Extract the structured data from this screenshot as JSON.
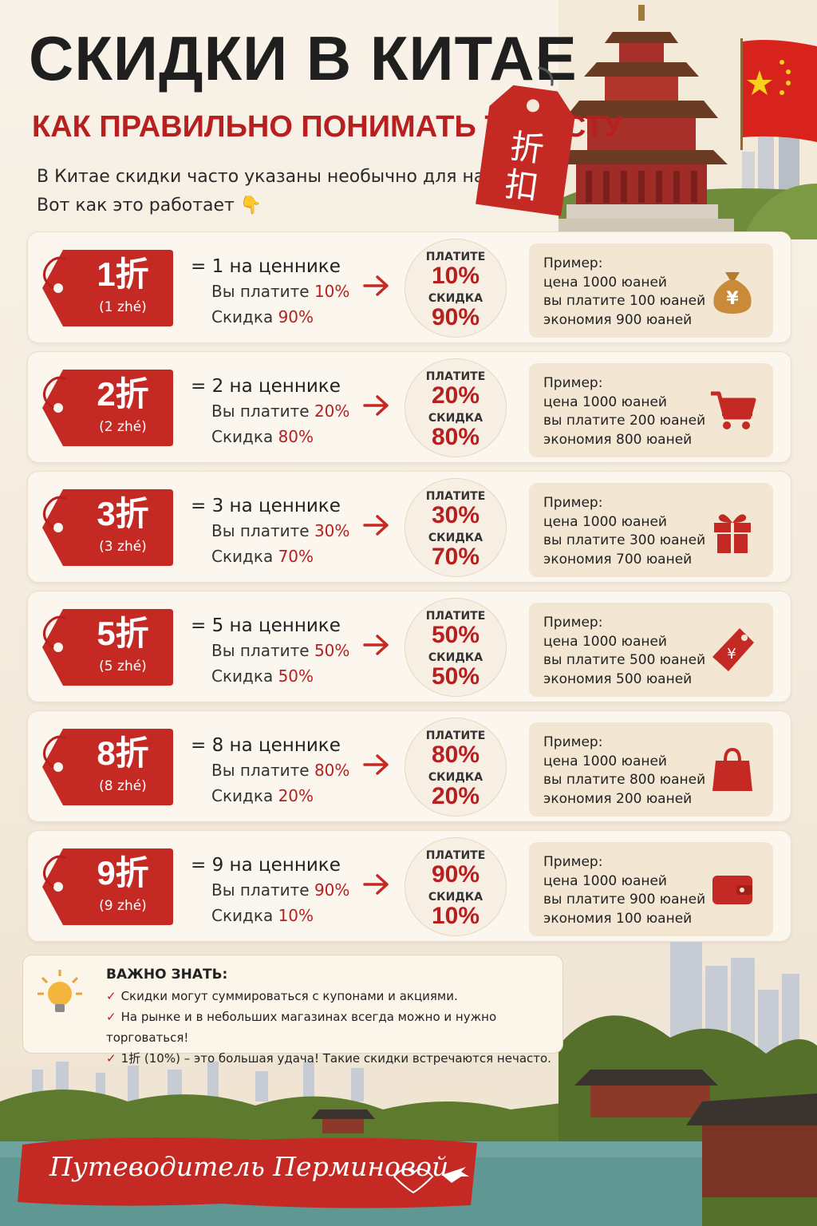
{
  "header": {
    "title": "СКИДКИ В КИТАЕ",
    "subtitle": "КАК ПРАВИЛЬНО ПОНИМАТЬ ТУРИСТУ",
    "intro_line1": "В Китае скидки часто указаны необычно для нас.",
    "intro_line2": "Вот как это работает",
    "intro_emoji": "👇",
    "tag_chars": [
      "折",
      "扣"
    ]
  },
  "labels": {
    "pay": "ПЛАТИТЕ",
    "discount": "СКИДКА",
    "example": "Пример:",
    "price": "цена 1000 юаней"
  },
  "rows": [
    {
      "main": "1折",
      "sub": "(1 zhé)",
      "line1": "= 1 на ценнике",
      "pay_text": "Вы платите",
      "pay": "10%",
      "disc_text": "Скидка",
      "disc": "90%",
      "ex_pay": "вы платите 100 юаней",
      "ex_save": "экономия 900 юаней",
      "icon": "money-bag-icon"
    },
    {
      "main": "2折",
      "sub": "(2 zhé)",
      "line1": "= 2 на ценнике",
      "pay_text": "Вы платите",
      "pay": "20%",
      "disc_text": "Скидка",
      "disc": "80%",
      "ex_pay": "вы платите 200 юаней",
      "ex_save": "экономия 800 юаней",
      "icon": "shopping-cart-icon"
    },
    {
      "main": "3折",
      "sub": "(3 zhé)",
      "line1": "= 3 на ценнике",
      "pay_text": "Вы платите",
      "pay": "30%",
      "disc_text": "Скидка",
      "disc": "70%",
      "ex_pay": "вы платите 300 юаней",
      "ex_save": "экономия 700 юаней",
      "icon": "gift-icon"
    },
    {
      "main": "5折",
      "sub": "(5 zhé)",
      "line1": "= 5 на ценнике",
      "pay_text": "Вы платите",
      "pay": "50%",
      "disc_text": "Скидка",
      "disc": "50%",
      "ex_pay": "вы платите 500 юаней",
      "ex_save": "экономия 500 юаней",
      "icon": "price-tag-icon"
    },
    {
      "main": "8折",
      "sub": "(8 zhé)",
      "line1": "= 8 на ценнике",
      "pay_text": "Вы платите",
      "pay": "80%",
      "disc_text": "Скидка",
      "disc": "20%",
      "ex_pay": "вы платите 800 юаней",
      "ex_save": "экономия 200 юаней",
      "icon": "shopping-bag-icon"
    },
    {
      "main": "9折",
      "sub": "(9 zhé)",
      "line1": "= 9 на ценнике",
      "pay_text": "Вы платите",
      "pay": "90%",
      "disc_text": "Скидка",
      "disc": "10%",
      "ex_pay": "вы платите 900 юаней",
      "ex_save": "экономия 100 юаней",
      "icon": "wallet-icon"
    }
  ],
  "important": {
    "title": "ВАЖНО ЗНАТЬ:",
    "check": "✓",
    "items": [
      "Скидки могут суммироваться с купонами и акциями.",
      "На рынке и в небольших магазинах всегда можно и нужно торговаться!",
      "1折 (10%) – это большая удача! Такие скидки встречаются нечасто."
    ]
  },
  "footer": {
    "brand": "Путеводитель Перминовой"
  },
  "colors": {
    "accent": "#b81f1f",
    "paper": "#f6efe4",
    "example_bg": "#f3e6d2"
  }
}
